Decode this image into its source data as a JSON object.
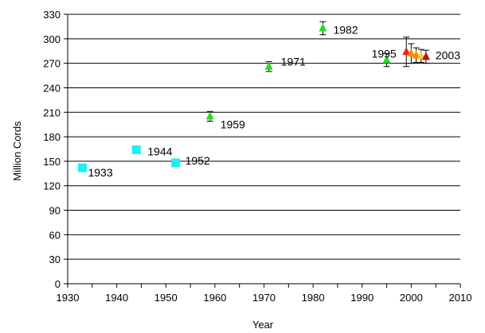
{
  "chart_data": {
    "type": "scatter",
    "xlabel": "Year",
    "ylabel": "Million Cords",
    "xlim": [
      1930,
      2010
    ],
    "ylim": [
      0,
      330
    ],
    "x_ticks": [
      "1930",
      "1940",
      "1950",
      "1960",
      "1970",
      "1980",
      "1990",
      "2000",
      "2010"
    ],
    "y_ticks": [
      "0",
      "30",
      "60",
      "90",
      "120",
      "150",
      "180",
      "210",
      "240",
      "270",
      "300",
      "330"
    ],
    "grid": "horizontal",
    "colors": {
      "cyan": "#1ff0f0",
      "green": "#22dd22",
      "red": "#ee2222",
      "orange": "#ff8800",
      "yellow": "#ffcc33",
      "darkred": "#bb1111"
    },
    "points": [
      {
        "x": 1933,
        "y": 142,
        "marker": "square",
        "color": "cyan",
        "label": "1933"
      },
      {
        "x": 1944,
        "y": 164,
        "marker": "square",
        "color": "cyan",
        "label": "1944"
      },
      {
        "x": 1952,
        "y": 148,
        "marker": "square",
        "color": "cyan",
        "label": "1952"
      },
      {
        "x": 1959,
        "y": 205,
        "marker": "triangle",
        "color": "green",
        "label": "1959",
        "err": 6
      },
      {
        "x": 1971,
        "y": 266,
        "marker": "triangle",
        "color": "green",
        "label": "1971",
        "err": 6
      },
      {
        "x": 1982,
        "y": 313,
        "marker": "triangle",
        "color": "green",
        "label": "1982",
        "err": 8
      },
      {
        "x": 1995,
        "y": 274,
        "marker": "triangle",
        "color": "green",
        "label": "1995",
        "err": 8
      },
      {
        "x": 1999,
        "y": 284,
        "marker": "triangle",
        "color": "red",
        "label": "",
        "err": 18
      },
      {
        "x": 2000,
        "y": 282,
        "marker": "triangle",
        "color": "orange",
        "label": "",
        "err": 12
      },
      {
        "x": 2001,
        "y": 280,
        "marker": "triangle",
        "color": "orange",
        "label": "",
        "err": 9
      },
      {
        "x": 2002,
        "y": 279,
        "marker": "triangle",
        "color": "yellow",
        "label": "",
        "err": 8
      },
      {
        "x": 2003,
        "y": 278,
        "marker": "triangle",
        "color": "darkred",
        "label": "2003",
        "err": 8
      }
    ]
  }
}
